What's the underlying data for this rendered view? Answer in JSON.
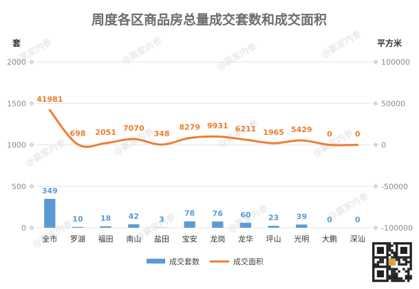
{
  "chart_data": {
    "type": "bar",
    "title": "周度各区商品房总量成交套数和成交面积",
    "left_axis_unit": "套",
    "right_axis_unit": "平方米",
    "categories": [
      "全市",
      "罗湖",
      "福田",
      "南山",
      "盐田",
      "宝安",
      "龙岗",
      "龙华",
      "坪山",
      "光明",
      "大鹏",
      "深汕"
    ],
    "left_ylim": [
      0,
      2000
    ],
    "left_ticks": [
      0,
      500,
      1000,
      1500,
      2000
    ],
    "right_ylim": [
      -100000,
      100000
    ],
    "right_ticks": [
      -100000,
      -50000,
      0,
      50000,
      100000
    ],
    "grid": true,
    "legend_position": "bottom",
    "series": [
      {
        "name": "成交套数",
        "type": "bar",
        "axis": "left",
        "color": "#5b9bd5",
        "values": [
          349,
          10,
          18,
          42,
          3,
          78,
          76,
          60,
          23,
          39,
          0,
          0
        ]
      },
      {
        "name": "成交面积",
        "type": "line",
        "axis": "right",
        "color": "#ed7d31",
        "values": [
          41981,
          698,
          2051,
          7070,
          348,
          8279,
          9931,
          6211,
          1965,
          5429,
          0,
          0
        ]
      }
    ]
  },
  "watermark": "@赢家内参"
}
